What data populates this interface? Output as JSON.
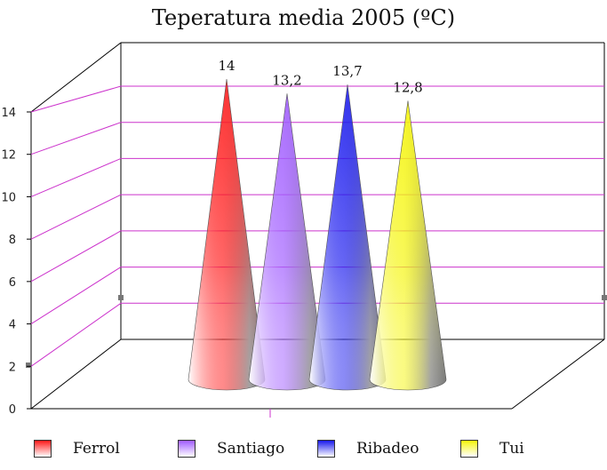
{
  "chart_data": {
    "type": "bar",
    "style": "3d-cone",
    "title": "Teperatura media 2005  (ºC)",
    "xlabel": "",
    "ylabel": "",
    "categories": [
      "Ferrol",
      "Santiago",
      "Ribadeo",
      "Tui"
    ],
    "values": [
      14,
      13.2,
      13.7,
      12.8
    ],
    "data_labels": [
      "14",
      "13,2",
      "13,7",
      "12,8"
    ],
    "colors": [
      "#ff1a1a",
      "#a05cff",
      "#1a1aee",
      "#f5f50a"
    ],
    "ylim": [
      0,
      14
    ],
    "yticks": [
      "0",
      "2",
      "4",
      "6",
      "8",
      "10",
      "12",
      "14"
    ],
    "grid": true,
    "grid_color": "#cc33cc",
    "legend_position": "bottom"
  }
}
